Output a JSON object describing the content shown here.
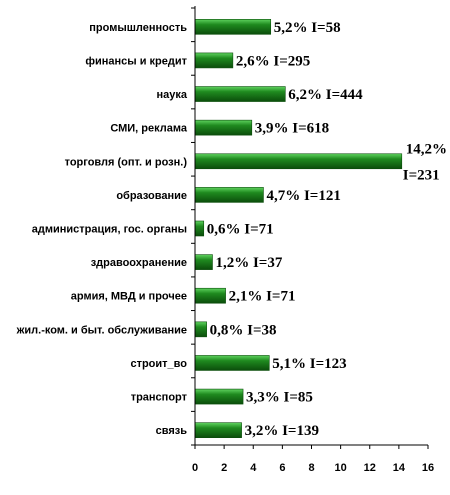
{
  "chart_data": {
    "type": "bar",
    "orientation": "horizontal",
    "categories": [
      "промышленность",
      "финансы и кредит",
      "наука",
      "СМИ, реклама",
      "торговля (опт. и розн.)",
      "образование",
      "администрация, гос. органы",
      "здравоохранение",
      "армия, МВД и прочее",
      "жил.-ком. и быт. обслуживание",
      "строит_во",
      "транспорт",
      "связь"
    ],
    "values": [
      5.2,
      2.6,
      6.2,
      3.9,
      14.2,
      4.7,
      0.6,
      1.2,
      2.1,
      0.8,
      5.1,
      3.3,
      3.2
    ],
    "data_labels": [
      "5,2% I=58",
      "2,6% I=295",
      "6,2% I=444",
      "3,9% I=618",
      "14,2% I=231",
      "4,7% I=121",
      "0,6% I=71",
      "1,2% I=37",
      "2,1% I=71",
      "0,8% I=38",
      "5,1% I=123",
      "3,3% I=85",
      "3,2% I=139"
    ],
    "xlim": [
      0,
      16
    ],
    "xticks": [
      "0",
      "2",
      "4",
      "6",
      "8",
      "10",
      "12",
      "14",
      "16"
    ],
    "title": "",
    "xlabel": "",
    "ylabel": "",
    "grid": false,
    "legend": "none",
    "colors": {
      "bar": "#1f8a1f",
      "bar_light": "#5fd35f",
      "bar_dark": "#0b4d0b"
    }
  }
}
